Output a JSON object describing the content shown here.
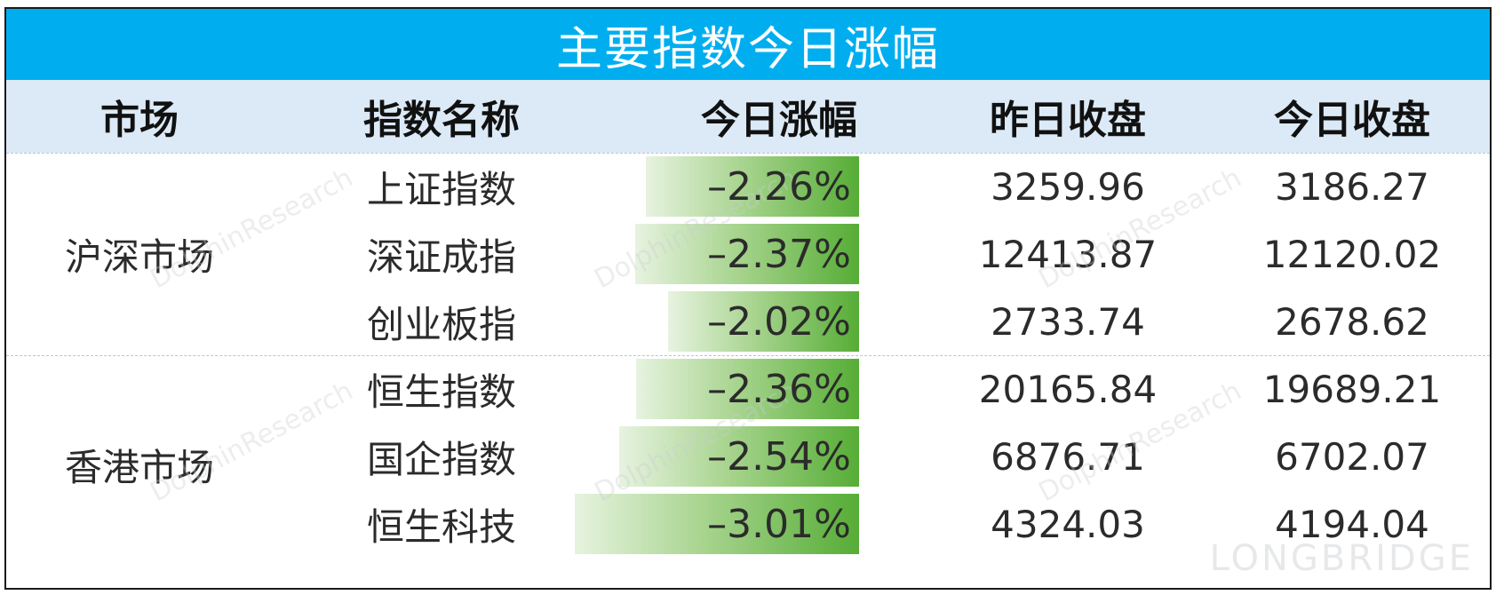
{
  "title": "主要指数今日涨幅",
  "headers": {
    "market": "市场",
    "index_name": "指数名称",
    "change": "今日涨幅",
    "prev_close": "昨日收盘",
    "today_close": "今日收盘"
  },
  "markets": [
    {
      "name": "沪深市场"
    },
    {
      "name": "香港市场"
    }
  ],
  "rows": [
    {
      "name": "上证指数",
      "change": "–2.26%",
      "prev": "3259.96",
      "today": "3186.27"
    },
    {
      "name": "深证成指",
      "change": "–2.37%",
      "prev": "12413.87",
      "today": "12120.02"
    },
    {
      "name": "创业板指",
      "change": "–2.02%",
      "prev": "2733.74",
      "today": "2678.62"
    },
    {
      "name": "恒生指数",
      "change": "–2.36%",
      "prev": "20165.84",
      "today": "19689.21"
    },
    {
      "name": "国企指数",
      "change": "–2.54%",
      "prev": "6876.71",
      "today": "6702.07"
    },
    {
      "name": "恒生科技",
      "change": "–3.01%",
      "prev": "4324.03",
      "today": "4194.04"
    }
  ],
  "chart_data": {
    "type": "table",
    "title": "主要指数今日涨幅",
    "columns": [
      "市场",
      "指数名称",
      "今日涨幅",
      "昨日收盘",
      "今日收盘"
    ],
    "categories": [
      "上证指数",
      "深证成指",
      "创业板指",
      "恒生指数",
      "国企指数",
      "恒生科技"
    ],
    "values": [
      -2.26,
      -2.37,
      -2.02,
      -2.36,
      -2.54,
      -3.01
    ],
    "prev_close": [
      3259.96,
      12413.87,
      2733.74,
      20165.84,
      6876.71,
      4324.03
    ],
    "today_close": [
      3186.27,
      12120.02,
      2678.62,
      19689.21,
      6702.07,
      4194.04
    ],
    "bar_color": "#56ad36"
  },
  "watermark": {
    "text_a": "LONGBRIDGE",
    "text_b": "DolphinResearch",
    "logo": "LONGBRIDGE"
  },
  "colors": {
    "title_bg": "#00aeef",
    "header_bg": "#dce9f6",
    "bar_dark": "#56ad36"
  }
}
